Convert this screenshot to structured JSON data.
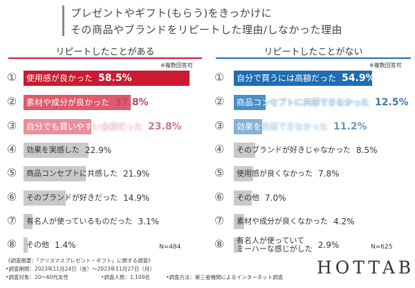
{
  "title": [
    "プレゼントやギフト(もらう)をきっかけに",
    "その商品やブランドをリピートした理由/しなかった理由"
  ],
  "chart_data": [
    {
      "type": "bar",
      "orientation": "horizontal",
      "title": "リピートしたことがある",
      "note": "※複数回答可",
      "accent": "#c8192e",
      "ranks": [
        "①",
        "②",
        "③",
        "④",
        "⑤",
        "⑥",
        "⑦",
        "⑧"
      ],
      "categories": [
        "使用感が良かった",
        "素材や成分が良かった",
        "自分でも買いやすい金額だった",
        "効果を実感した",
        "商品コンセプトに共感した",
        "そのブランドが好きだった",
        "有名人が使っているものだった",
        "その他"
      ],
      "values": [
        58.5,
        37.8,
        23.8,
        22.9,
        21.9,
        14.9,
        3.1,
        1.4
      ],
      "value_labels": [
        "58.5%",
        "37.8%",
        "23.8%",
        "22.9%",
        "21.9%",
        "14.9%",
        "3.1%",
        "1.4%"
      ],
      "colors": [
        "#cc1a30",
        "#e05a6e",
        "#eb8f9d",
        "#c9c9c9",
        "#c9c9c9",
        "#c9c9c9",
        "#c9c9c9",
        "#c9c9c9"
      ],
      "n": "N=484"
    },
    {
      "type": "bar",
      "orientation": "horizontal",
      "title": "リピートしたことがない",
      "note": "※複数回答可",
      "accent": "#1f6db3",
      "ranks": [
        "①",
        "②",
        "③",
        "④",
        "⑤",
        "⑥",
        "⑦",
        "⑧"
      ],
      "categories": [
        "自分で買うには高額だった",
        "商品コンセプトに共感できなかった",
        "効果を実感できなかった",
        "そのブランドが好きじゃなかった",
        "使用感が良くなかった",
        "その他",
        "素材や成分が良くなかった",
        "有名人が使っていて\nミーハーな感じがした"
      ],
      "values": [
        54.9,
        12.5,
        11.2,
        8.5,
        7.8,
        7.0,
        4.2,
        2.9
      ],
      "value_labels": [
        "54.9%",
        "12.5%",
        "11.2%",
        "8.5%",
        "7.8%",
        "7.0%",
        "4.2%",
        "2.9%"
      ],
      "colors": [
        "#1f6db3",
        "#4a8fc8",
        "#80b2da",
        "#c9c9c9",
        "#c9c9c9",
        "#c9c9c9",
        "#c9c9c9",
        "#c9c9c9"
      ],
      "n": "N=625"
    }
  ],
  "footer": {
    "heading": "《調査概要：「クリスマスプレゼント・ギフト」に関する調査》",
    "period": "•調査期間：2023年11月24日（金）～2023年11月27日（月）",
    "details": [
      "•調査対象：20〜60代女性",
      "•調査人数：1,109名",
      "•調査方法：第三者機関によるインターネット調査"
    ],
    "brand": "HOTTAB"
  }
}
